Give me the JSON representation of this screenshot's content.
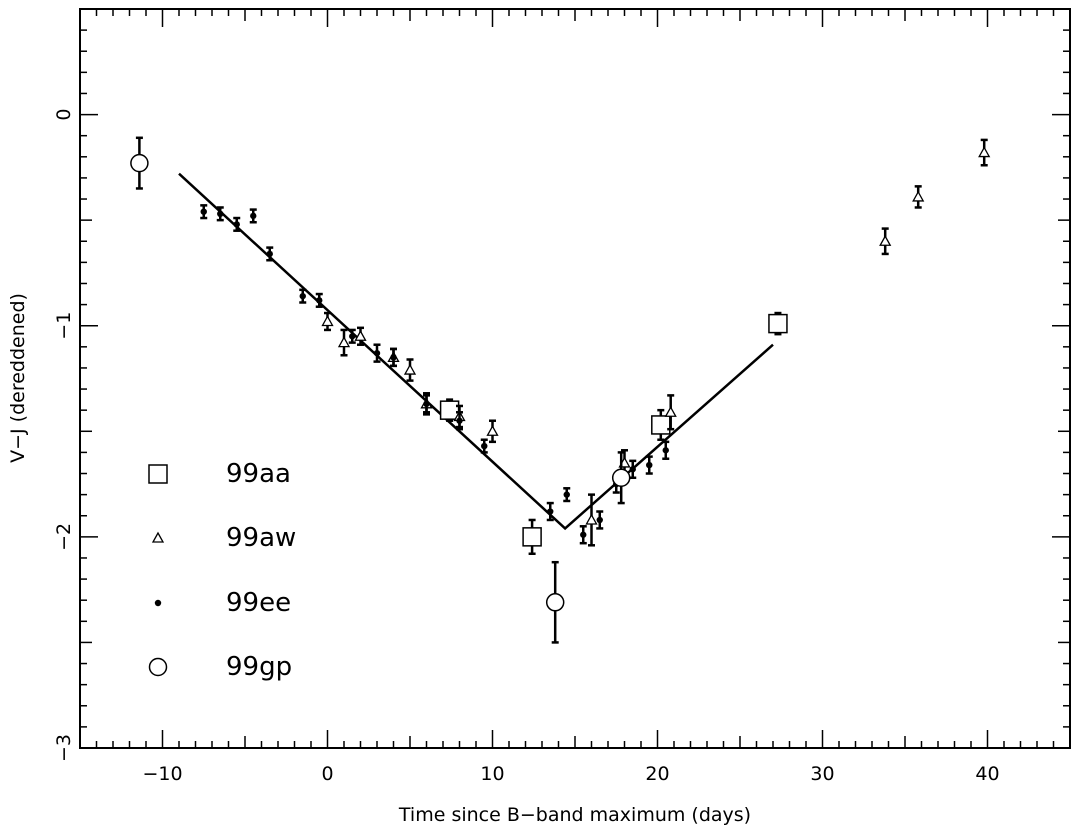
{
  "chart_data": {
    "type": "scatter",
    "xlabel": "Time since B−band maximum (days)",
    "ylabel": "V−J (dereddened)",
    "xlim": [
      -15,
      45
    ],
    "ylim": [
      -3,
      0.5
    ],
    "x_ticks": [
      -10,
      0,
      10,
      20,
      30,
      40
    ],
    "y_ticks": [
      0,
      -1,
      -2,
      -3
    ],
    "x_tick_labels": [
      "−10",
      "0",
      "10",
      "20",
      "30",
      "40"
    ],
    "y_tick_labels": [
      "0",
      "−1",
      "−2",
      "−3"
    ],
    "grid": false,
    "legend_position": "lower-left",
    "series": [
      {
        "name": "99aa",
        "marker": "square",
        "points": [
          {
            "x": 7.4,
            "y": -1.4,
            "err": 0.05
          },
          {
            "x": 12.4,
            "y": -2.0,
            "err": 0.08
          },
          {
            "x": 20.2,
            "y": -1.47,
            "err": 0.07
          },
          {
            "x": 27.3,
            "y": -0.99,
            "err": 0.05
          }
        ]
      },
      {
        "name": "99aw",
        "marker": "triangle",
        "points": [
          {
            "x": 0.0,
            "y": -0.98,
            "err": 0.04
          },
          {
            "x": 1.0,
            "y": -1.08,
            "err": 0.06
          },
          {
            "x": 2.0,
            "y": -1.05,
            "err": 0.04
          },
          {
            "x": 4.0,
            "y": -1.15,
            "err": 0.04
          },
          {
            "x": 5.0,
            "y": -1.21,
            "err": 0.05
          },
          {
            "x": 6.0,
            "y": -1.37,
            "err": 0.05
          },
          {
            "x": 8.0,
            "y": -1.43,
            "err": 0.05
          },
          {
            "x": 10.0,
            "y": -1.5,
            "err": 0.05
          },
          {
            "x": 16.0,
            "y": -1.92,
            "err": 0.12
          },
          {
            "x": 18.0,
            "y": -1.65,
            "err": 0.06
          },
          {
            "x": 20.8,
            "y": -1.41,
            "err": 0.08
          },
          {
            "x": 33.8,
            "y": -0.6,
            "err": 0.06
          },
          {
            "x": 35.8,
            "y": -0.39,
            "err": 0.05
          },
          {
            "x": 39.8,
            "y": -0.18,
            "err": 0.06
          }
        ]
      },
      {
        "name": "99ee",
        "marker": "dot",
        "points": [
          {
            "x": -7.5,
            "y": -0.46,
            "err": 0.03
          },
          {
            "x": -6.5,
            "y": -0.47,
            "err": 0.03
          },
          {
            "x": -5.5,
            "y": -0.52,
            "err": 0.03
          },
          {
            "x": -4.5,
            "y": -0.48,
            "err": 0.03
          },
          {
            "x": -3.5,
            "y": -0.66,
            "err": 0.03
          },
          {
            "x": -1.5,
            "y": -0.86,
            "err": 0.03
          },
          {
            "x": -0.5,
            "y": -0.88,
            "err": 0.03
          },
          {
            "x": 1.5,
            "y": -1.05,
            "err": 0.03
          },
          {
            "x": 3.0,
            "y": -1.13,
            "err": 0.04
          },
          {
            "x": 4.0,
            "y": -1.15,
            "err": 0.04
          },
          {
            "x": 6.0,
            "y": -1.37,
            "err": 0.04
          },
          {
            "x": 8.0,
            "y": -1.45,
            "err": 0.04
          },
          {
            "x": 9.5,
            "y": -1.57,
            "err": 0.03
          },
          {
            "x": 13.5,
            "y": -1.88,
            "err": 0.04
          },
          {
            "x": 14.5,
            "y": -1.8,
            "err": 0.03
          },
          {
            "x": 15.5,
            "y": -1.99,
            "err": 0.04
          },
          {
            "x": 16.5,
            "y": -1.92,
            "err": 0.04
          },
          {
            "x": 17.5,
            "y": -1.75,
            "err": 0.04
          },
          {
            "x": 18.5,
            "y": -1.68,
            "err": 0.04
          },
          {
            "x": 19.5,
            "y": -1.66,
            "err": 0.04
          },
          {
            "x": 20.5,
            "y": -1.59,
            "err": 0.04
          }
        ]
      },
      {
        "name": "99gp",
        "marker": "circle",
        "points": [
          {
            "x": -11.4,
            "y": -0.23,
            "err": 0.12
          },
          {
            "x": 13.8,
            "y": -2.31,
            "err": 0.19
          },
          {
            "x": 17.8,
            "y": -1.72,
            "err": 0.12
          }
        ]
      }
    ],
    "fit_line": {
      "x": [
        -9.0,
        14.4,
        27.0
      ],
      "y": [
        -0.28,
        -1.96,
        -1.09
      ]
    }
  }
}
